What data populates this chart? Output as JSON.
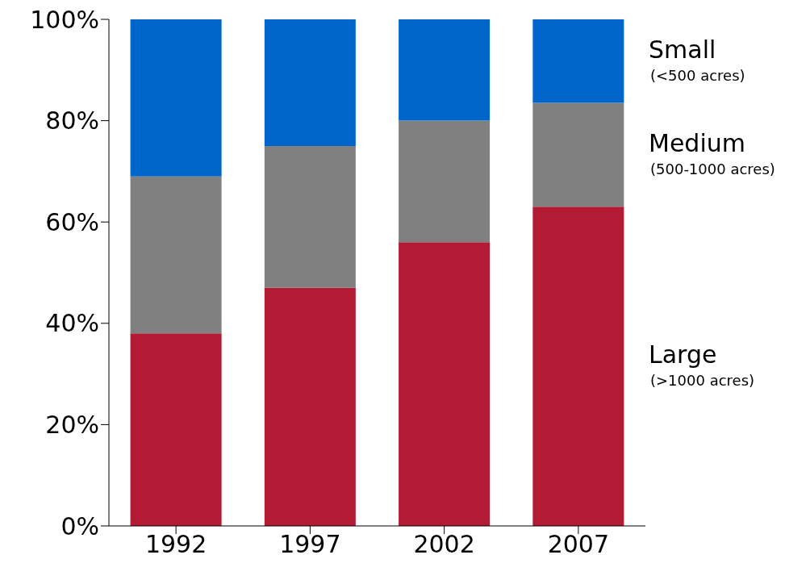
{
  "chart_data": {
    "type": "bar",
    "stacked": true,
    "categories": [
      "1992",
      "1997",
      "2002",
      "2007"
    ],
    "series": [
      {
        "name": "Large",
        "color": "#b31b34",
        "values": [
          38,
          47,
          56,
          63
        ]
      },
      {
        "name": "Medium",
        "color": "#808080",
        "values": [
          31,
          28,
          24,
          20.5
        ]
      },
      {
        "name": "Small",
        "color": "#0066cc",
        "values": [
          31,
          25,
          20,
          16.5
        ]
      }
    ],
    "annotations": [
      "(>1000 acres)",
      "(500-1000 acres)",
      "(<500 acres)"
    ],
    "ylim": [
      0,
      100
    ],
    "yticks": [
      {
        "value": 0,
        "label": "0%"
      },
      {
        "value": 20,
        "label": "20%"
      },
      {
        "value": 40,
        "label": "40%"
      },
      {
        "value": 60,
        "label": "60%"
      },
      {
        "value": 80,
        "label": "80%"
      },
      {
        "value": 100,
        "label": "100%"
      }
    ],
    "grid": false,
    "legend": false
  }
}
